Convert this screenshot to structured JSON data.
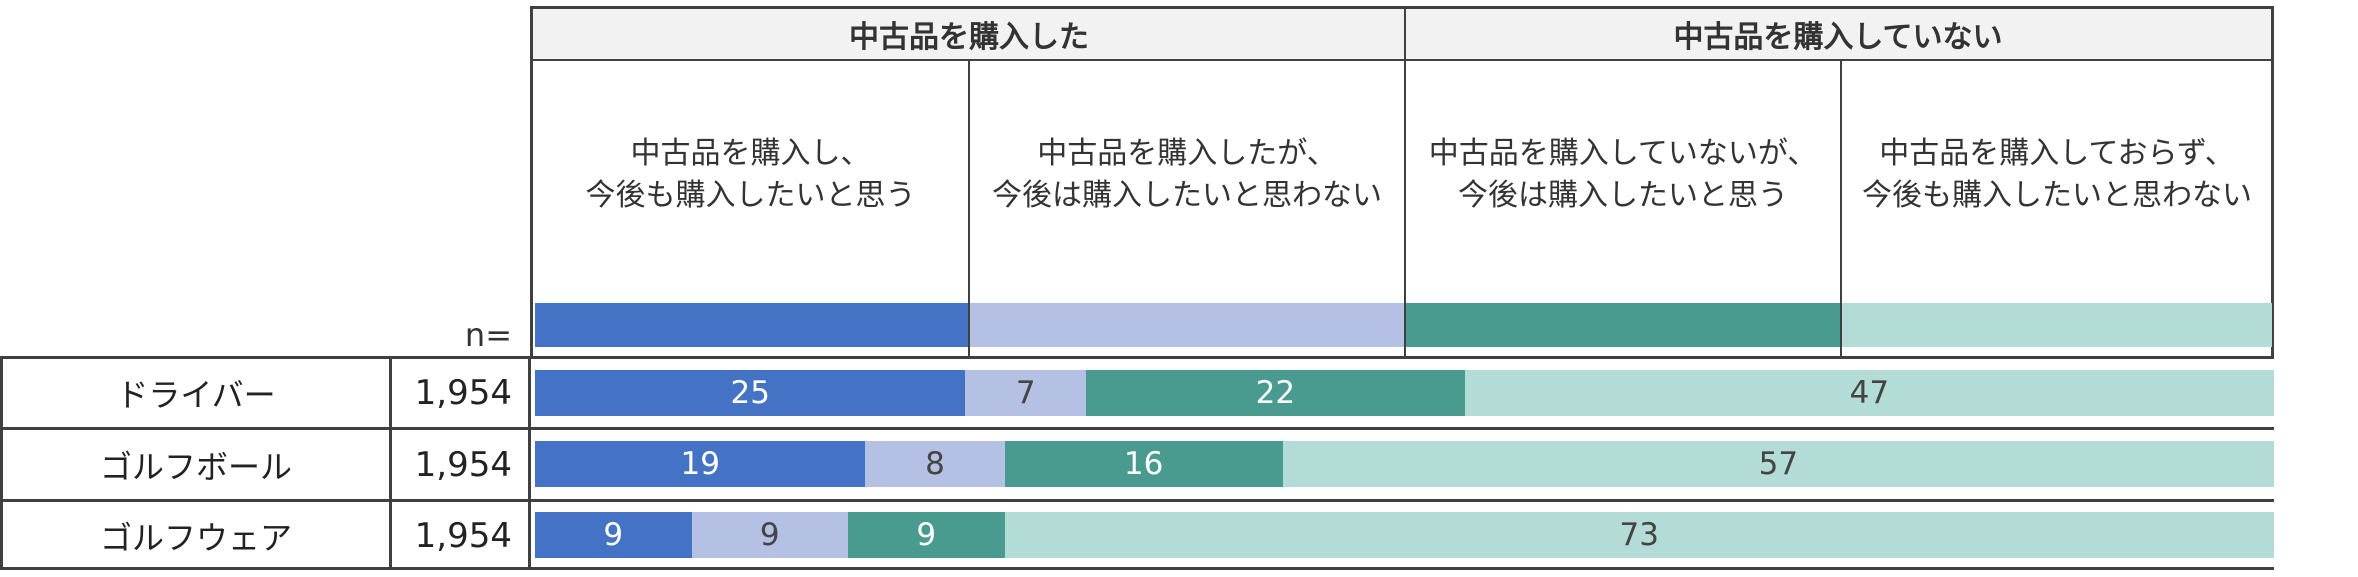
{
  "header": {
    "groups": [
      "中古品を購入した",
      "中古品を購入していない"
    ],
    "categories": [
      "中古品を購入し、\n今後も購入したいと思う",
      "中古品を購入したが、\n今後は購入したいと思わない",
      "中古品を購入していないが、\n今後は購入したいと思う",
      "中古品を購入しておらず、\n今後も購入したいと思わない"
    ],
    "n_label": "n="
  },
  "colors": [
    "#4472c4",
    "#b4c0e4",
    "#4a9b8f",
    "#b3dcd6"
  ],
  "label_colors": [
    "#ffffff",
    "#444444",
    "#ffffff",
    "#444444"
  ],
  "chart_data": {
    "type": "bar",
    "orientation": "horizontal",
    "stacked": "100%",
    "categories": [
      "ドライバー",
      "ゴルフボール",
      "ゴルフウェア"
    ],
    "n": [
      "1,954",
      "1,954",
      "1,954"
    ],
    "series": [
      {
        "name": "中古品を購入し、今後も購入したいと思う",
        "values": [
          25,
          19,
          9
        ]
      },
      {
        "name": "中古品を購入したが、今後は購入したいと思わない",
        "values": [
          7,
          8,
          9
        ]
      },
      {
        "name": "中古品を購入していないが、今後は購入したいと思う",
        "values": [
          22,
          16,
          9
        ]
      },
      {
        "name": "中古品を購入しておらず、今後も購入したいと思わない",
        "values": [
          47,
          57,
          73
        ]
      }
    ]
  }
}
